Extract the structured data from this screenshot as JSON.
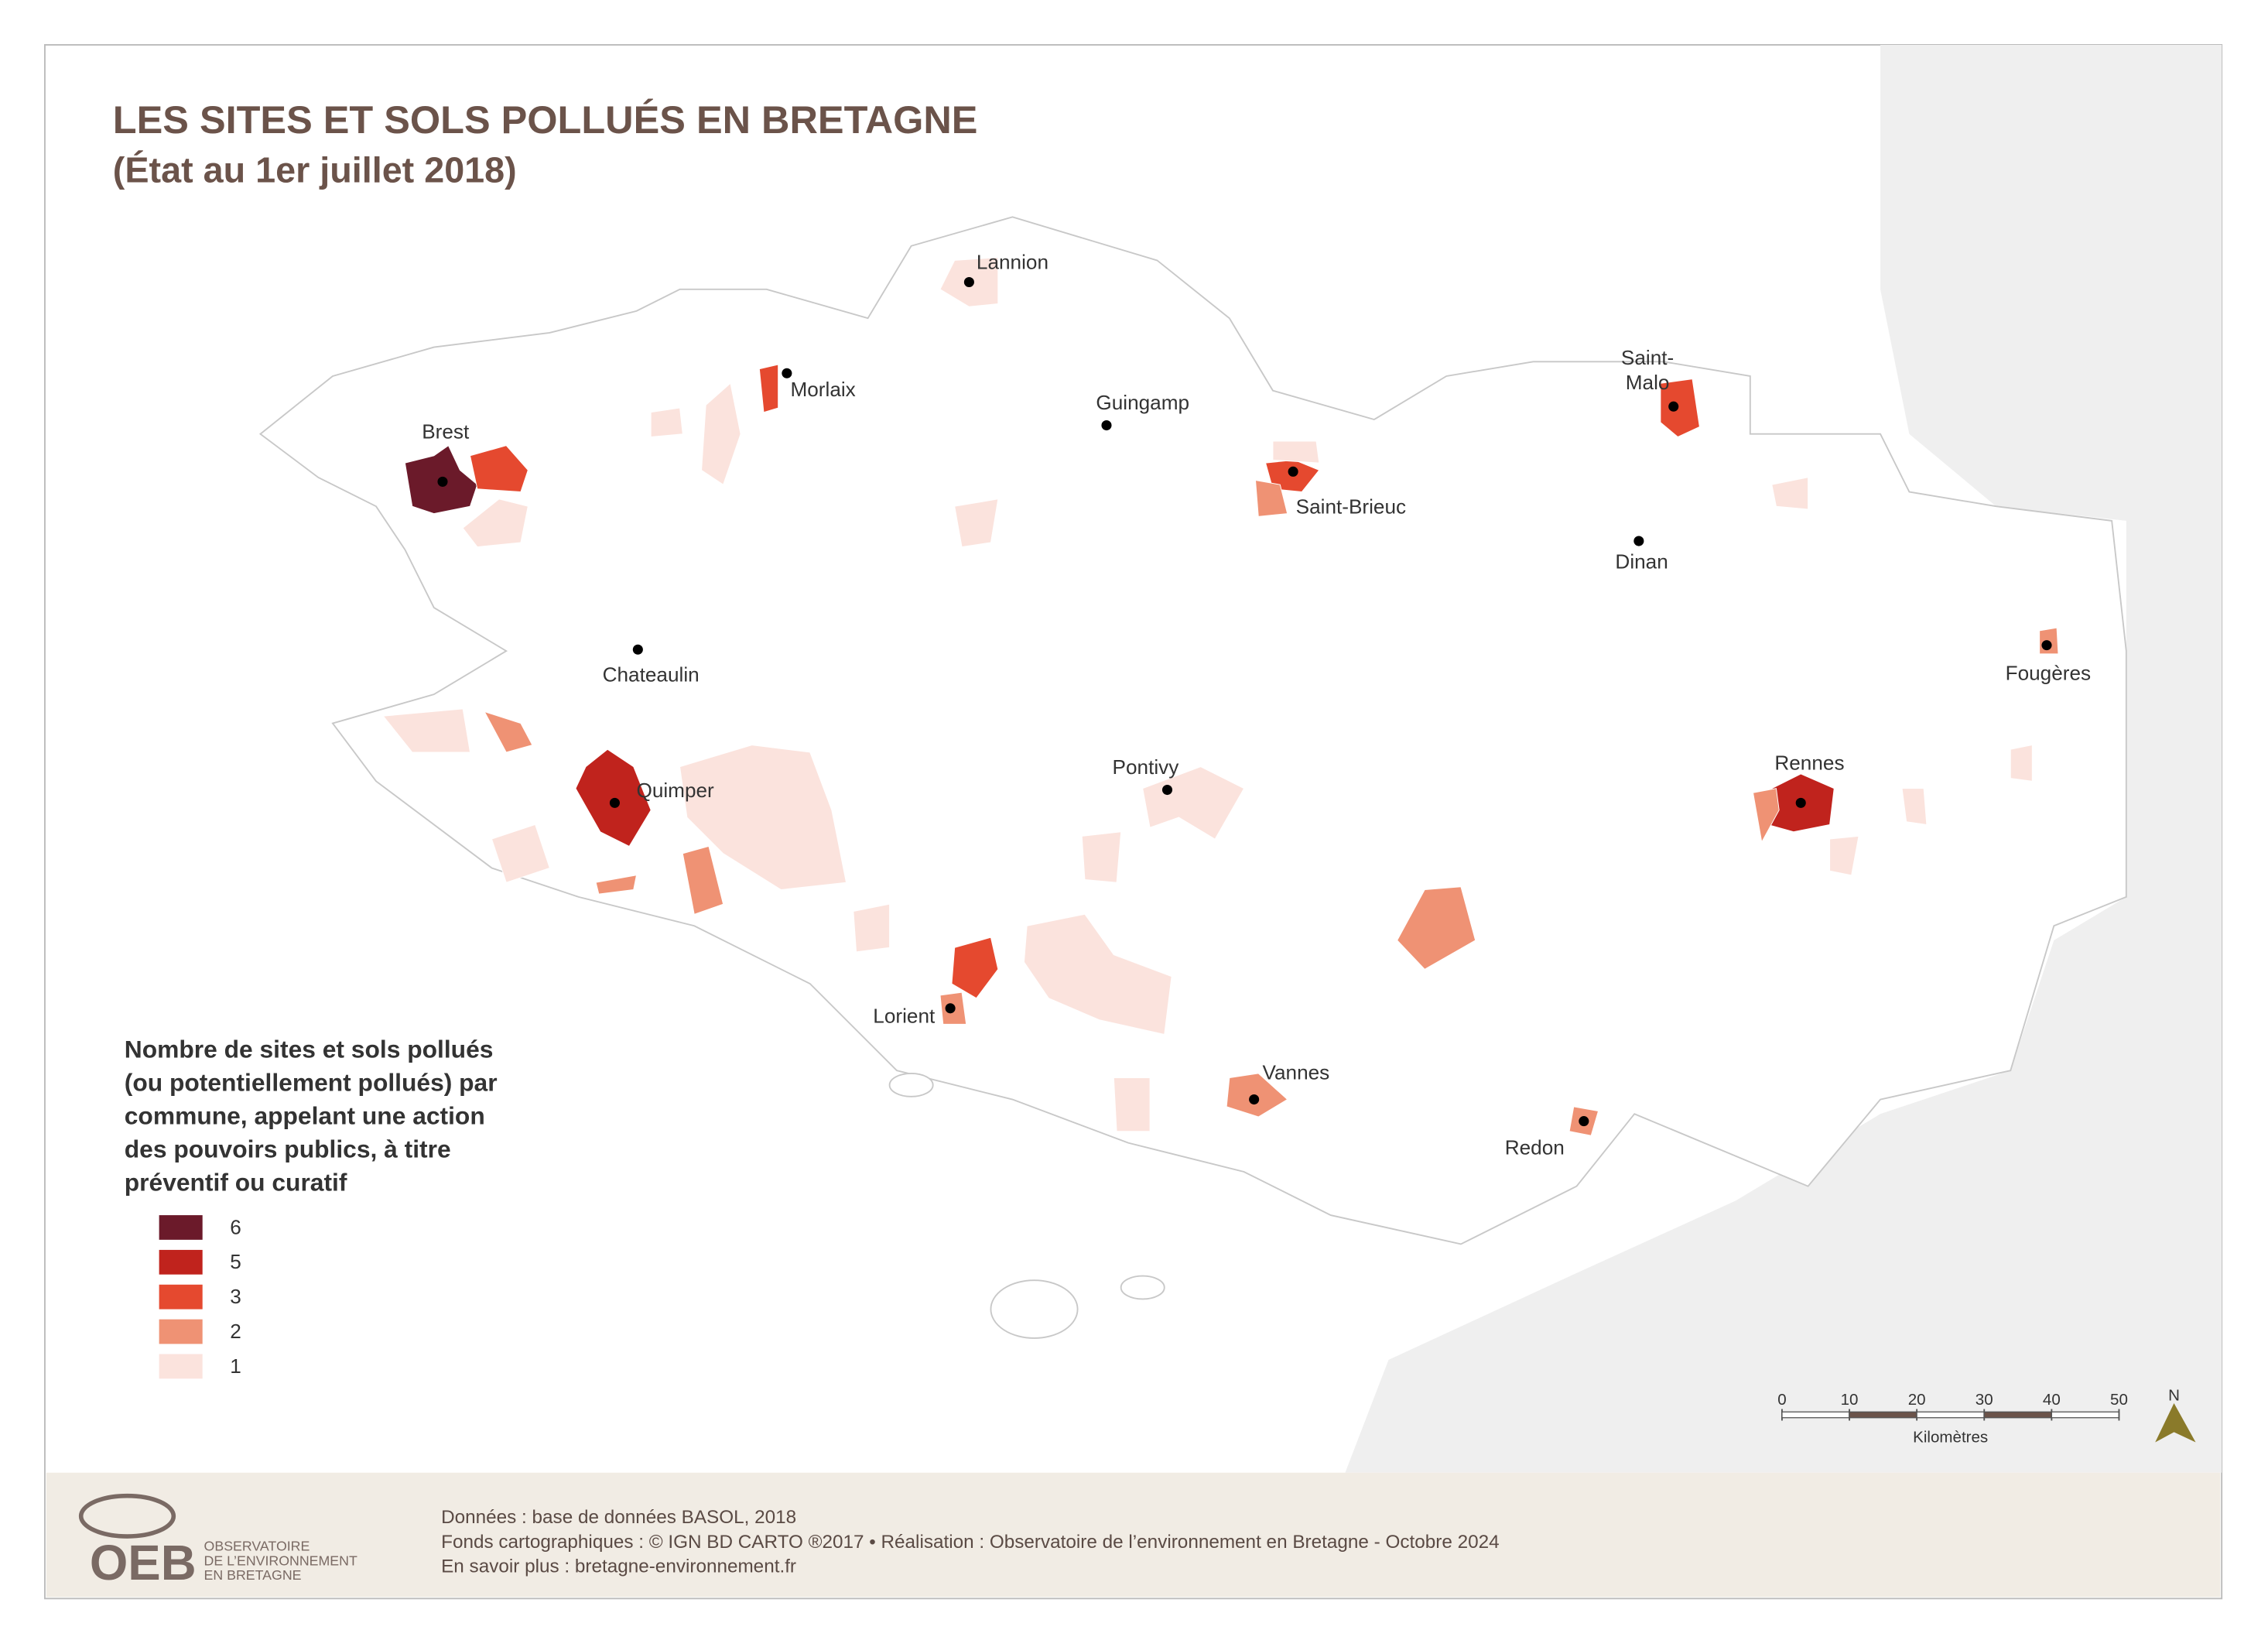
{
  "header": {
    "title": "LES SITES ET SOLS POLLUÉS EN BRETAGNE",
    "subtitle": "(État au 1er juillet 2018)"
  },
  "cities": [
    {
      "label": [
        "Lannion"
      ]
    },
    {
      "label": [
        "Morlaix"
      ]
    },
    {
      "label": [
        "Guingamp"
      ]
    },
    {
      "label": [
        "Brest"
      ]
    },
    {
      "label": [
        "Saint-Brieuc"
      ]
    },
    {
      "label": [
        "Saint-",
        "Malo"
      ]
    },
    {
      "label": [
        "Dinan"
      ]
    },
    {
      "label": [
        "Chateaulin"
      ]
    },
    {
      "label": [
        "Quimper"
      ]
    },
    {
      "label": [
        "Pontivy"
      ]
    },
    {
      "label": [
        "Rennes"
      ]
    },
    {
      "label": [
        "Fougères"
      ]
    },
    {
      "label": [
        "Lorient"
      ]
    },
    {
      "label": [
        "Vannes"
      ]
    },
    {
      "label": [
        "Redon"
      ]
    }
  ],
  "legend": {
    "title": [
      "Nombre de sites et sols pollués",
      "(ou potentiellement pollués) par",
      "commune, appelant une action",
      "des pouvoirs publics, à titre",
      "préventif ou curatif"
    ],
    "items": [
      {
        "value": 6,
        "color": "#6b1a2a"
      },
      {
        "value": 5,
        "color": "#c0231d"
      },
      {
        "value": 3,
        "color": "#e5492f"
      },
      {
        "value": 2,
        "color": "#ef9274"
      },
      {
        "value": 1,
        "color": "#fbe3dd"
      }
    ]
  },
  "scale_bar": {
    "ticks": [
      0,
      10,
      20,
      30,
      40,
      50
    ],
    "unit": "Kilomètres",
    "north": "N"
  },
  "footer": {
    "lines": [
      "Données : base de données BASOL, 2018",
      "Fonds cartographiques : © IGN BD CARTO ®2017 • Réalisation : Observatoire de l’environnement en Bretagne - Octobre 2024",
      "En savoir plus : bretagne-environnement.fr"
    ]
  },
  "logo": {
    "acronym": "OEB",
    "lines": [
      "OBSERVATOIRE",
      "DE L’ENVIRONNEMENT",
      "EN BRETAGNE"
    ]
  }
}
